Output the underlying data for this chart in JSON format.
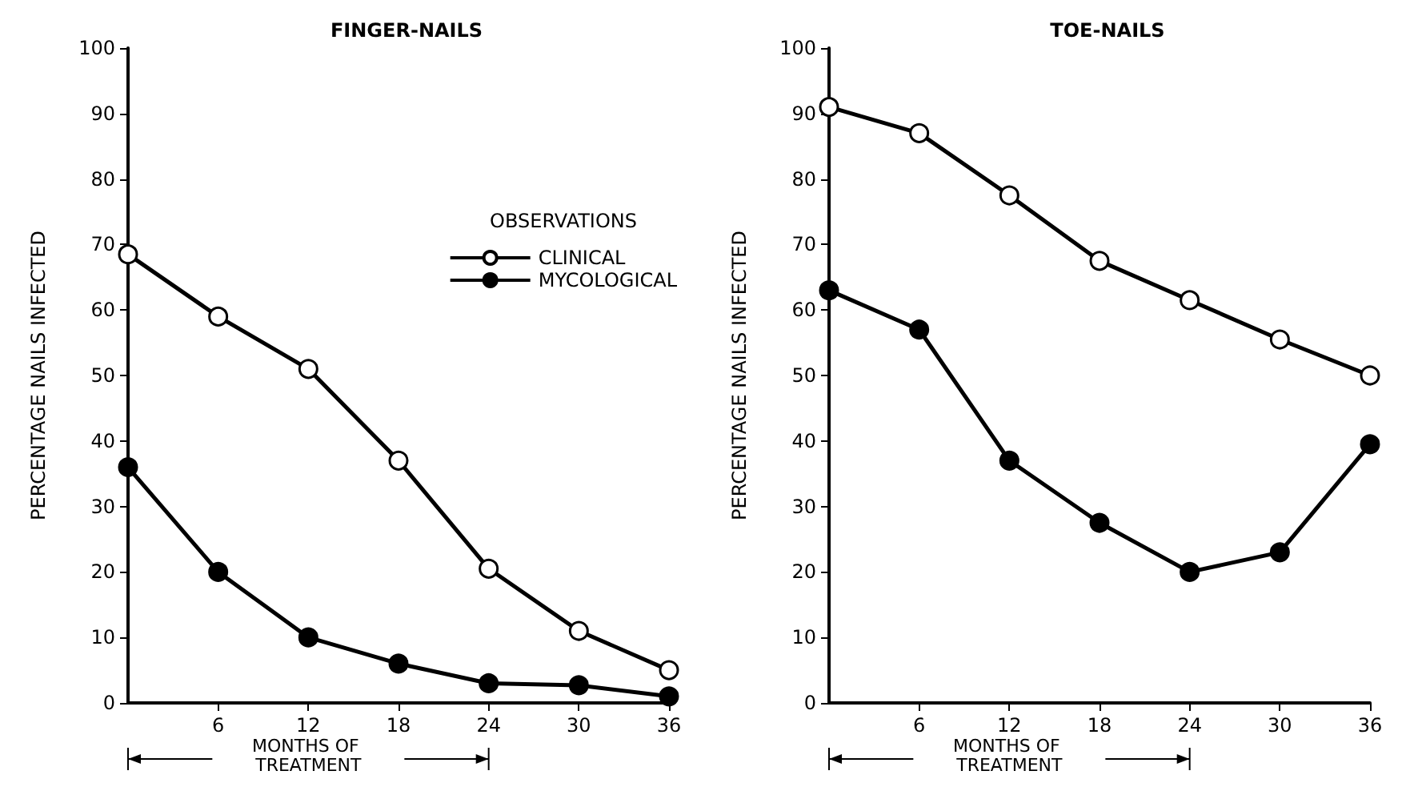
{
  "chart_data": [
    {
      "type": "line",
      "title": "FINGER-NAILS",
      "xlabel": "MONTHS OF TREATMENT",
      "ylabel": "PERCENTAGE NAILS INFECTED",
      "legend_title": "OBSERVATIONS",
      "legend": "top right",
      "marker": "circle",
      "grid": false,
      "x": [
        0,
        6,
        12,
        18,
        24,
        30,
        36
      ],
      "xlim": [
        0,
        36
      ],
      "xticks": [
        6,
        12,
        18,
        24,
        30,
        36
      ],
      "ylim": [
        0,
        100
      ],
      "yticks": [
        0,
        10,
        20,
        30,
        40,
        50,
        60,
        70,
        80,
        90,
        100
      ],
      "series": [
        {
          "name": "CLINICAL",
          "color": "#000000",
          "values": [
            68.5,
            59,
            51,
            37,
            20.5,
            11,
            5
          ]
        },
        {
          "name": "MYCOLOGICAL",
          "color": "#000000",
          "values": [
            36,
            20,
            10,
            6,
            3,
            2.7,
            1
          ]
        }
      ]
    },
    {
      "type": "line",
      "title": "TOE-NAILS",
      "xlabel": "MONTHS OF TREATMENT",
      "ylabel": "PERCENTAGE NAILS INFECTED",
      "marker": "circle",
      "grid": false,
      "x": [
        0,
        6,
        12,
        18,
        24,
        30,
        36
      ],
      "xlim": [
        0,
        36
      ],
      "xticks": [
        6,
        12,
        18,
        24,
        30,
        36
      ],
      "ylim": [
        0,
        100
      ],
      "yticks": [
        0,
        10,
        20,
        30,
        40,
        50,
        60,
        70,
        80,
        90,
        100
      ],
      "series": [
        {
          "color": "#000000",
          "values": [
            91,
            87,
            77.5,
            67.5,
            61.5,
            55.5,
            50
          ]
        },
        {
          "color": "#000000",
          "values": [
            63,
            57,
            37,
            27.5,
            20,
            23,
            39.5
          ]
        }
      ]
    }
  ]
}
